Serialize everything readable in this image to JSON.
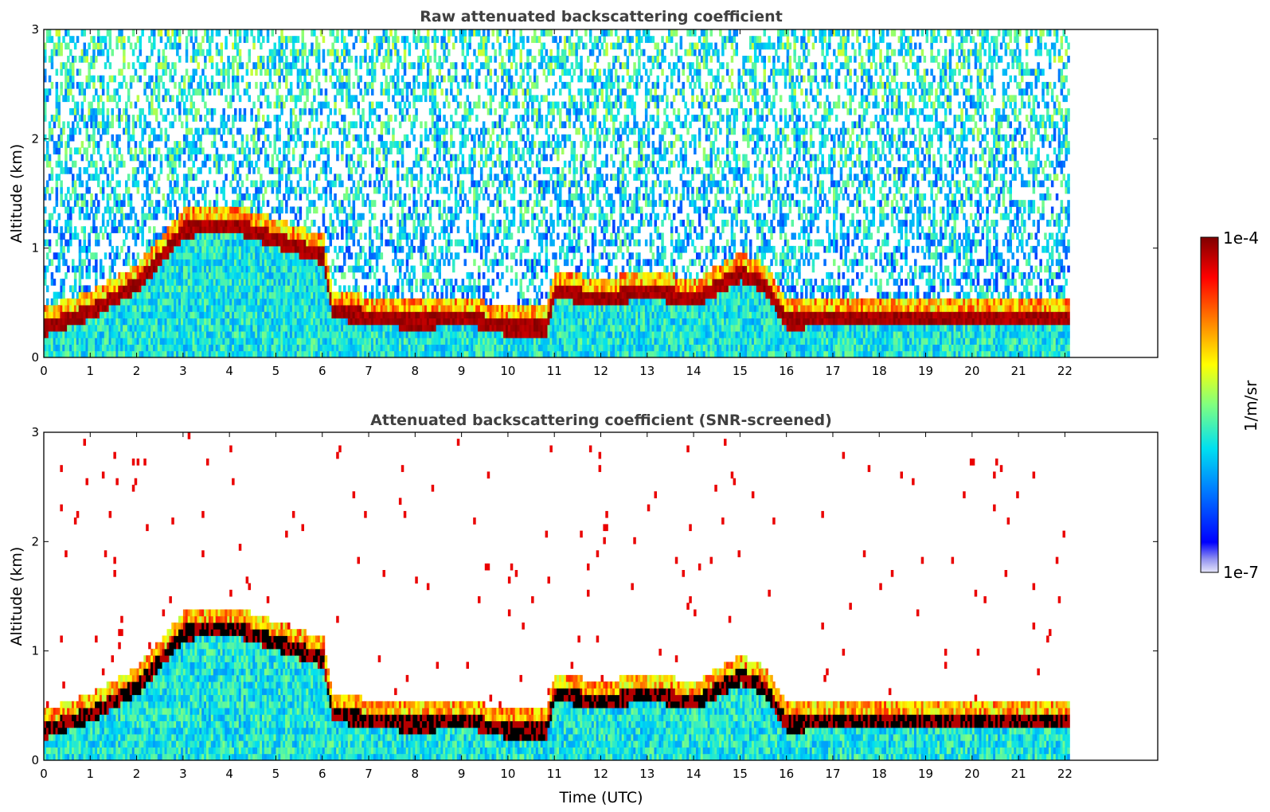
{
  "chart_data": [
    {
      "type": "heatmap",
      "title": "Raw attenuated backscattering coefficient",
      "ylabel": "Altitude (km)",
      "xlabel": "",
      "xlim": [
        0,
        24
      ],
      "ylim": [
        0,
        3
      ],
      "x_ticks": [
        "0",
        "1",
        "2",
        "3",
        "4",
        "5",
        "6",
        "7",
        "8",
        "9",
        "10",
        "11",
        "12",
        "13",
        "14",
        "15",
        "16",
        "17",
        "18",
        "19",
        "20",
        "21",
        "22"
      ],
      "y_ticks": [
        "0",
        "1",
        "2",
        "3"
      ],
      "data_extent_x": [
        0,
        22.1
      ],
      "boundary_layer_top_km": [
        [
          0,
          0.25
        ],
        [
          1,
          0.4
        ],
        [
          2,
          0.65
        ],
        [
          3,
          1.15
        ],
        [
          4,
          1.2
        ],
        [
          5,
          1.05
        ],
        [
          6,
          0.9
        ],
        [
          6.2,
          0.4
        ],
        [
          7,
          0.35
        ],
        [
          8,
          0.3
        ],
        [
          9,
          0.35
        ],
        [
          10,
          0.25
        ],
        [
          10.8,
          0.25
        ],
        [
          11,
          0.6
        ],
        [
          12,
          0.5
        ],
        [
          13,
          0.6
        ],
        [
          14,
          0.5
        ],
        [
          15,
          0.75
        ],
        [
          15.5,
          0.65
        ],
        [
          16,
          0.3
        ],
        [
          17,
          0.35
        ],
        [
          18,
          0.35
        ],
        [
          19,
          0.35
        ],
        [
          20,
          0.35
        ],
        [
          21,
          0.35
        ],
        [
          22.1,
          0.35
        ]
      ]
    },
    {
      "type": "heatmap",
      "title": "Attenuated backscattering coefficient (SNR-screened)",
      "ylabel": "Altitude (km)",
      "xlabel": "Time (UTC)",
      "xlim": [
        0,
        24
      ],
      "ylim": [
        0,
        3
      ],
      "x_ticks": [
        "0",
        "1",
        "2",
        "3",
        "4",
        "5",
        "6",
        "7",
        "8",
        "9",
        "10",
        "11",
        "12",
        "13",
        "14",
        "15",
        "16",
        "17",
        "18",
        "19",
        "20",
        "21",
        "22"
      ],
      "y_ticks": [
        "0",
        "1",
        "2",
        "3"
      ],
      "data_extent_x": [
        0,
        22.1
      ]
    }
  ],
  "colorbar": {
    "label": "1/m/sr",
    "max_label": "1e-4",
    "min_label": "1e-7",
    "scale": "log",
    "range": [
      1e-07,
      0.0001
    ],
    "colormap": "jet"
  }
}
